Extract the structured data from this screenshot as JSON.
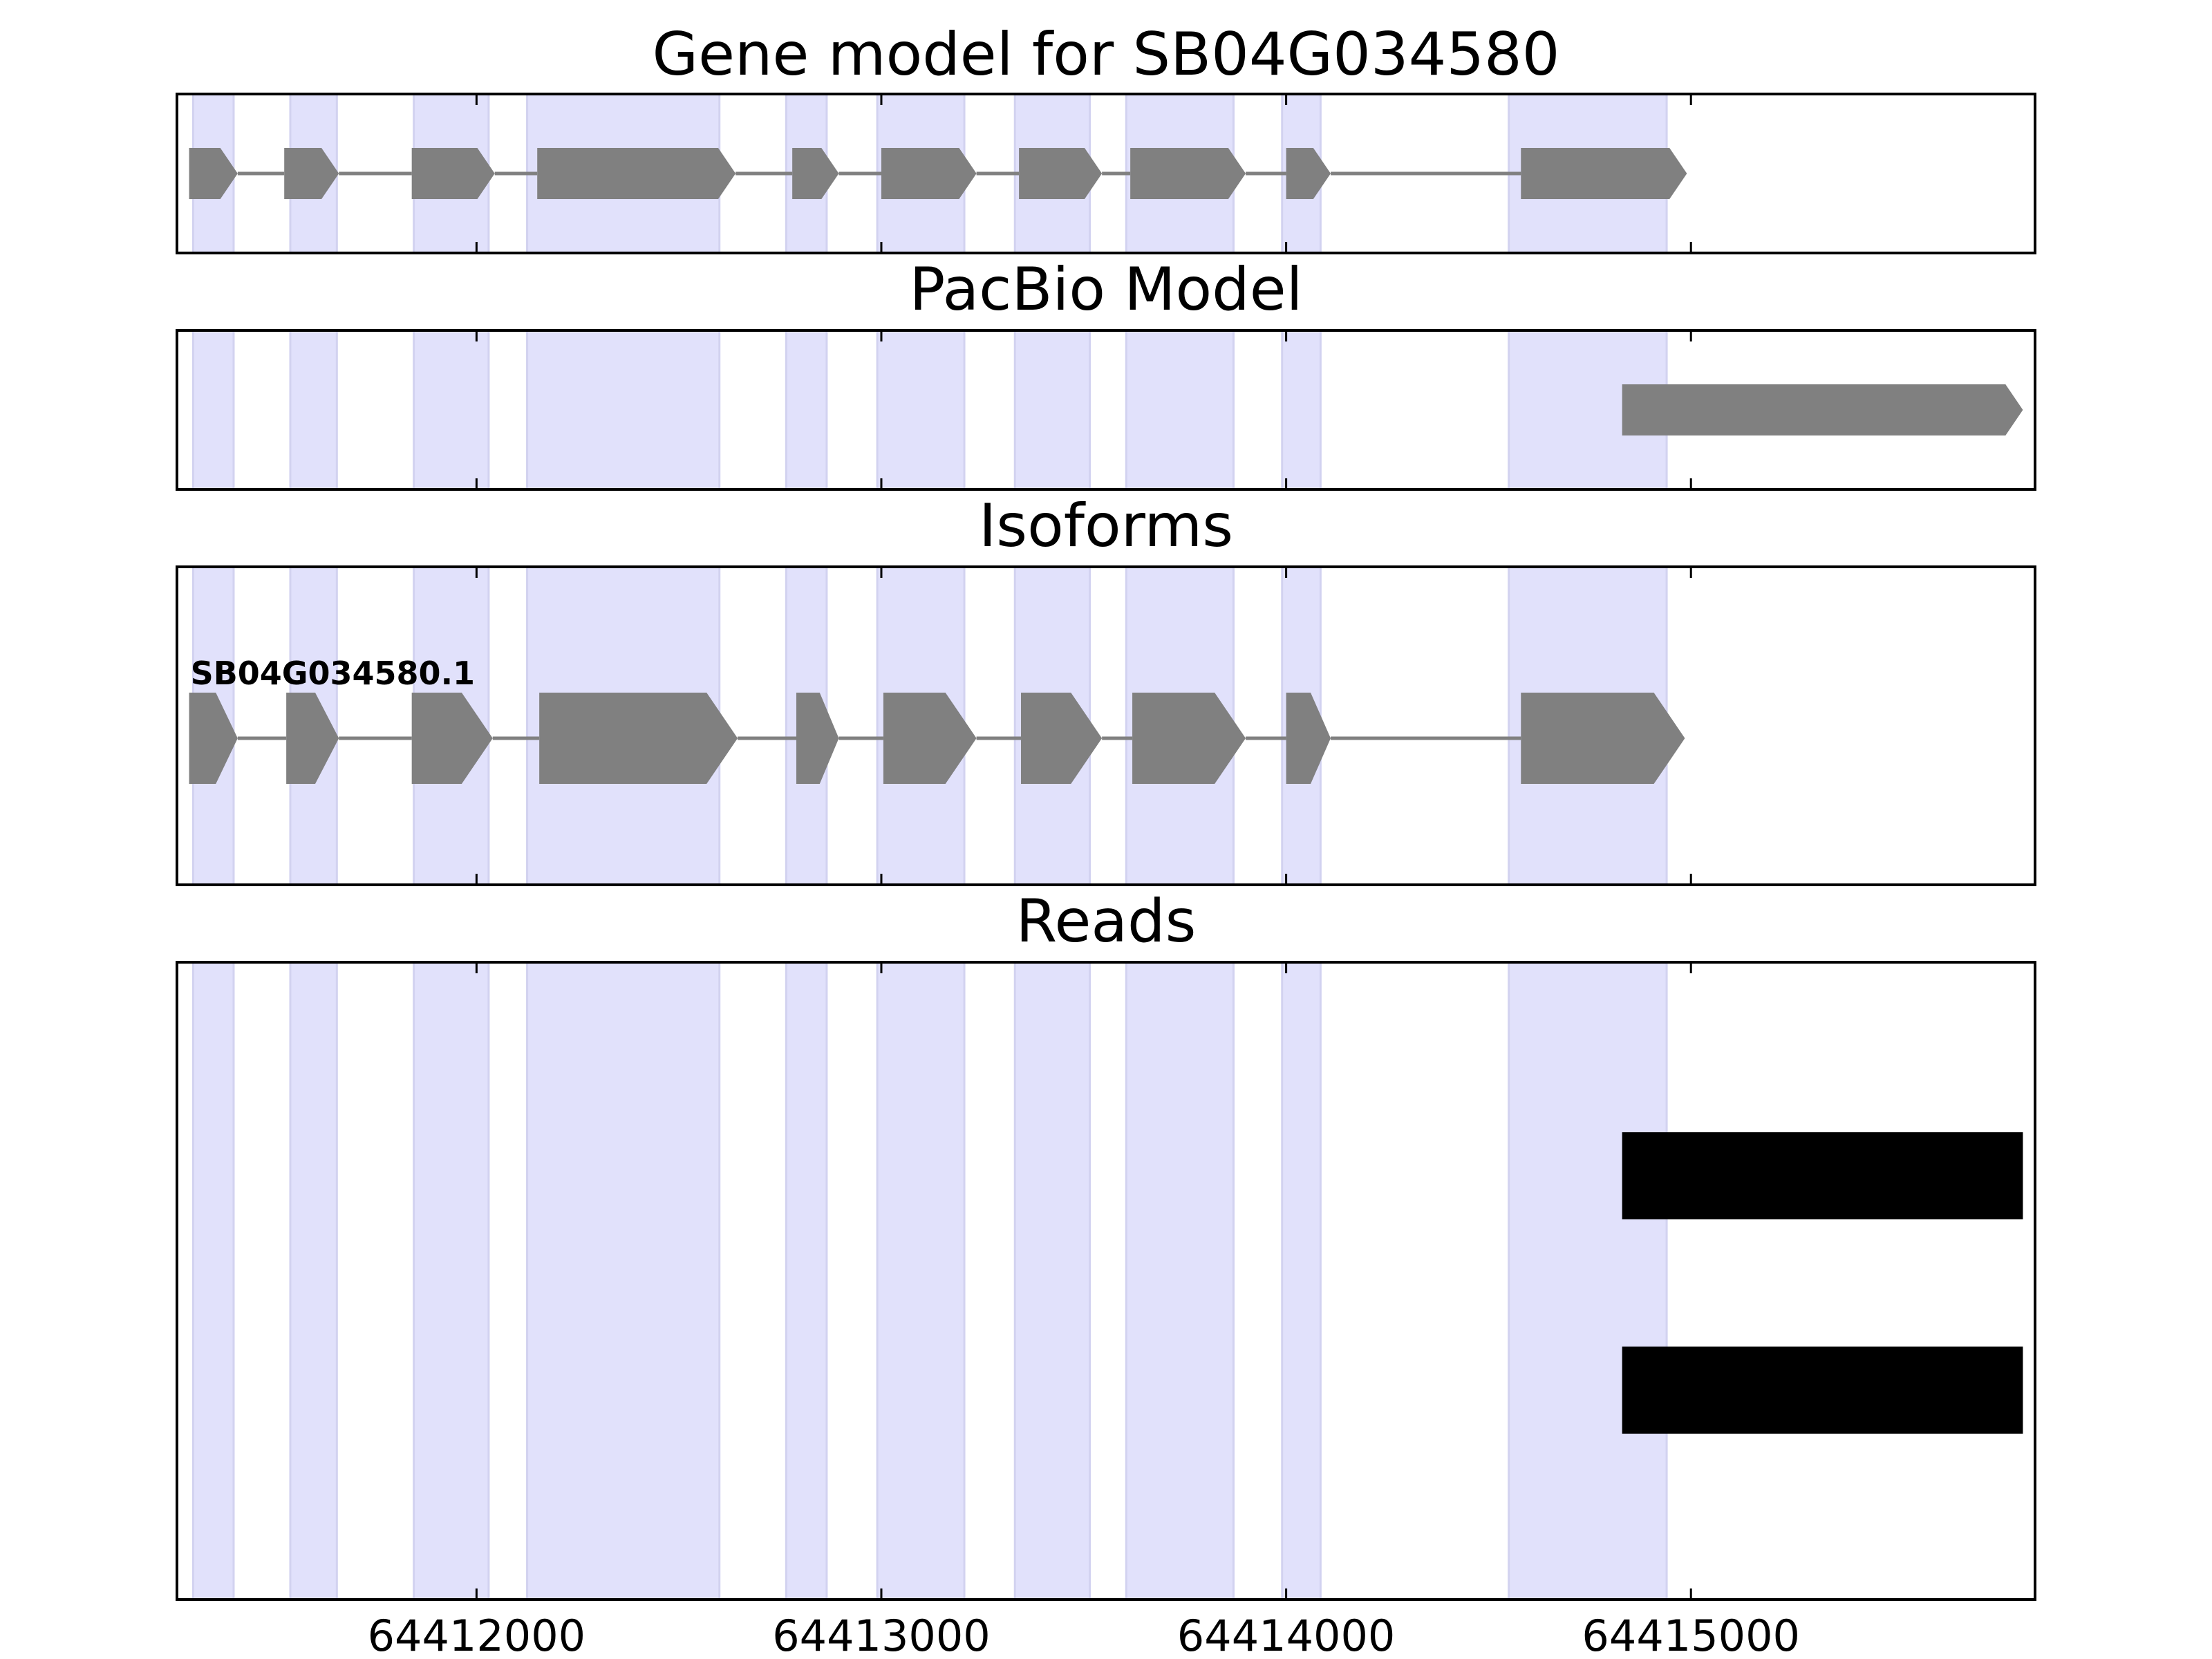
{
  "chart_data": {
    "type": "gene-track",
    "title": "Gene model for SB04G034580",
    "xlim": [
      64411260,
      64415850
    ],
    "x_ticks": [
      64412000,
      64413000,
      64414000,
      64415000
    ],
    "x_tick_labels": [
      "64412000",
      "64413000",
      "64414000",
      "64415000"
    ],
    "highlight_color": "#e1e1fb",
    "feature_color": "#808080",
    "read_color": "#000000",
    "exon_regions": [
      [
        64411300,
        64411400
      ],
      [
        64411540,
        64411655
      ],
      [
        64411845,
        64412030
      ],
      [
        64412125,
        64412600
      ],
      [
        64412765,
        64412865
      ],
      [
        64412990,
        64413205
      ],
      [
        64413330,
        64413515
      ],
      [
        64413605,
        64413870
      ],
      [
        64413990,
        64414085
      ],
      [
        64414550,
        64414940
      ]
    ],
    "panels": [
      {
        "title": "Gene model for SB04G034580",
        "track": "gene",
        "features": [
          {
            "name": "",
            "strand": "+",
            "exons": [
              [
                64411290,
                64411410
              ],
              [
                64411525,
                64411660
              ],
              [
                64411840,
                64412045
              ],
              [
                64412150,
                64412640
              ],
              [
                64412780,
                64412895
              ],
              [
                64413000,
                64413235
              ],
              [
                64413340,
                64413545
              ],
              [
                64413615,
                64413900
              ],
              [
                64414000,
                64414110
              ],
              [
                64414580,
                64414990
              ]
            ]
          }
        ]
      },
      {
        "title": "PacBio Model",
        "track": "pacbio",
        "features": [
          {
            "name": "",
            "strand": "+",
            "exons": [
              [
                64414830,
                64415820
              ]
            ]
          }
        ]
      },
      {
        "title": "Isoforms",
        "track": "isoforms",
        "features": [
          {
            "name": "SB04G034580.1",
            "strand": "+",
            "exons": [
              [
                64411290,
                64411410
              ],
              [
                64411530,
                64411660
              ],
              [
                64411840,
                64412040
              ],
              [
                64412155,
                64412645
              ],
              [
                64412790,
                64412895
              ],
              [
                64413005,
                64413235
              ],
              [
                64413345,
                64413545
              ],
              [
                64413620,
                64413900
              ],
              [
                64414000,
                64414110
              ],
              [
                64414580,
                64414985
              ]
            ]
          }
        ]
      },
      {
        "title": "Reads",
        "track": "reads",
        "features": [
          {
            "name": "",
            "start": 64414830,
            "end": 64415820
          },
          {
            "name": "",
            "start": 64414830,
            "end": 64415820
          }
        ]
      }
    ]
  }
}
